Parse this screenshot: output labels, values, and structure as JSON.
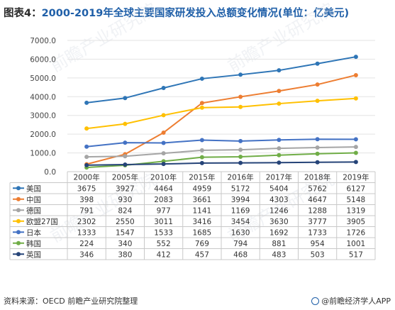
{
  "header": {
    "prefix": "图表4：",
    "title": "2000-2019年全球主要国家研发投入总额变化情况(单位：亿美元)"
  },
  "footer": {
    "source": "资料来源：OECD 前瞻产业研究院整理",
    "brand": "@前瞻经济学人APP"
  },
  "watermark": "前瞻产业研究院",
  "chart_data": {
    "type": "line",
    "title": "",
    "xlabel": "",
    "ylabel": "",
    "categories": [
      "2000年",
      "2005年",
      "2010年",
      "2015年",
      "2016年",
      "2017年",
      "2018年",
      "2019年"
    ],
    "yticks": [
      "0.0",
      "1000.0",
      "2000.0",
      "3000.0",
      "4000.0",
      "5000.0",
      "6000.0",
      "7000.0"
    ],
    "ylim": [
      0,
      7000
    ],
    "grid": true,
    "legend": "table",
    "series": [
      {
        "name": "美国",
        "color": "#2e75b6",
        "values": [
          3675,
          3927,
          4464,
          4959,
          5172,
          5404,
          5762,
          6127
        ]
      },
      {
        "name": "中国",
        "color": "#ed7d31",
        "values": [
          398,
          930,
          2083,
          3661,
          3994,
          4303,
          4647,
          5148
        ]
      },
      {
        "name": "德国",
        "color": "#a5a5a5",
        "values": [
          791,
          824,
          977,
          1141,
          1169,
          1246,
          1288,
          1319
        ]
      },
      {
        "name": "欧盟27国",
        "color": "#ffc000",
        "values": [
          2302,
          2550,
          3011,
          3416,
          3454,
          3630,
          3777,
          3905
        ]
      },
      {
        "name": "日本",
        "color": "#4472c4",
        "values": [
          1333,
          1547,
          1533,
          1685,
          1630,
          1692,
          1733,
          1726
        ]
      },
      {
        "name": "韩国",
        "color": "#70ad47",
        "values": [
          224,
          340,
          552,
          769,
          794,
          881,
          954,
          1001
        ]
      },
      {
        "name": "英国",
        "color": "#264478",
        "values": [
          346,
          380,
          412,
          457,
          468,
          483,
          503,
          517
        ]
      }
    ]
  }
}
